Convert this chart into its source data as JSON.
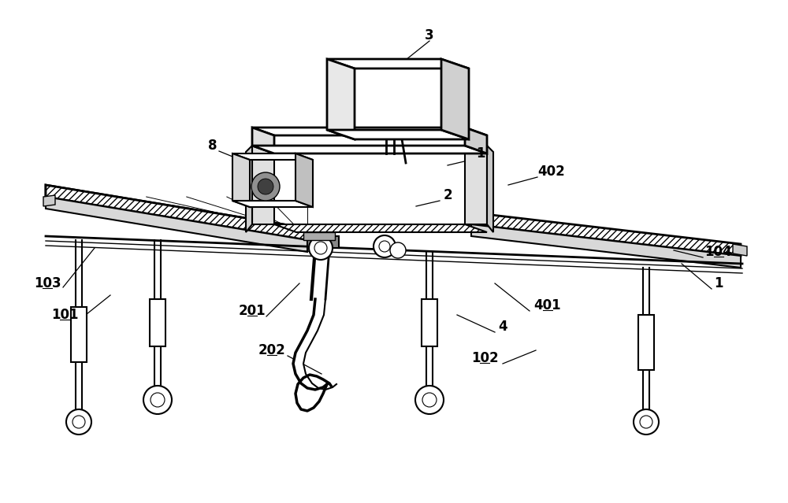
{
  "bg_color": "#ffffff",
  "lc": "#000000",
  "fig_width": 10.0,
  "fig_height": 6.39,
  "dpi": 100
}
